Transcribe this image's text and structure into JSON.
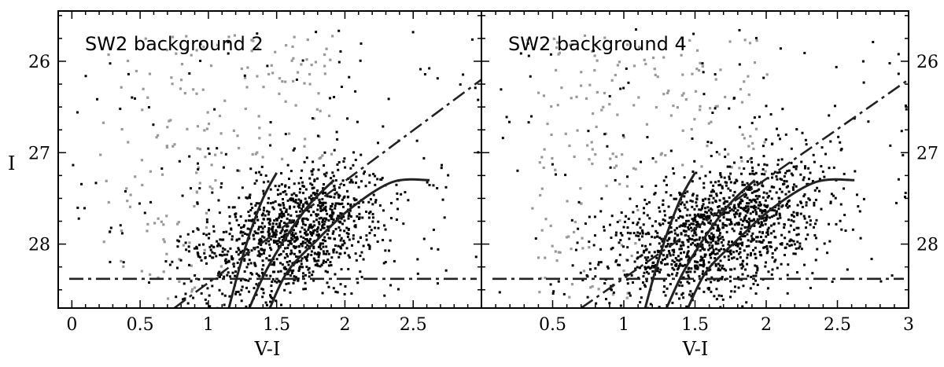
{
  "chart_data": [
    {
      "type": "scatter",
      "title": "SW2 background 2",
      "xlabel": "V-I",
      "ylabel": "I",
      "xlim": [
        -0.1,
        3.0
      ],
      "ylim": [
        28.7,
        25.45
      ],
      "y_inverted": true,
      "xticks": [
        "0",
        "0.5",
        "1",
        "1.5",
        "2",
        "2.5"
      ],
      "xtick_values": [
        0,
        0.5,
        1,
        1.5,
        2,
        2.5
      ],
      "yticks": [
        "26",
        "27",
        "28"
      ],
      "ytick_values": [
        26,
        27,
        28
      ],
      "ytick_labels_side": "left",
      "colors": {
        "bright_points": "#999999",
        "faint_points": "#000000",
        "lines": "#222222"
      },
      "limit_lines": {
        "horizontal_I": 28.38,
        "diagonal": {
          "x1": 0.75,
          "y1": 28.7,
          "x2": 3.0,
          "y2": 26.2
        }
      },
      "isochrones": [
        [
          [
            1.15,
            28.7
          ],
          [
            1.22,
            28.3
          ],
          [
            1.3,
            27.9
          ],
          [
            1.4,
            27.5
          ],
          [
            1.5,
            27.22
          ]
        ],
        [
          [
            1.3,
            28.7
          ],
          [
            1.42,
            28.3
          ],
          [
            1.58,
            27.9
          ],
          [
            1.75,
            27.55
          ],
          [
            1.92,
            27.3
          ]
        ],
        [
          [
            1.45,
            28.7
          ],
          [
            1.58,
            28.3
          ],
          [
            1.8,
            27.95
          ],
          [
            2.05,
            27.6
          ],
          [
            2.35,
            27.32
          ],
          [
            2.62,
            27.3
          ]
        ]
      ],
      "cloud": {
        "center_x": 1.62,
        "center_y": 27.85,
        "spread_x": 0.34,
        "spread_y": 0.33,
        "count": 1100
      }
    },
    {
      "type": "scatter",
      "title": "SW2 background 4",
      "xlabel": "V-I",
      "ylabel": "",
      "xlim": [
        0.0,
        3.0
      ],
      "ylim": [
        28.7,
        25.45
      ],
      "y_inverted": true,
      "xticks": [
        "0.5",
        "1",
        "1.5",
        "2",
        "2.5",
        "3"
      ],
      "xtick_values": [
        0.5,
        1,
        1.5,
        2,
        2.5,
        3
      ],
      "yticks": [
        "26",
        "27",
        "28"
      ],
      "ytick_values": [
        26,
        27,
        28
      ],
      "ytick_labels_side": "right",
      "colors": {
        "bright_points": "#999999",
        "faint_points": "#000000",
        "lines": "#222222"
      },
      "limit_lines": {
        "horizontal_I": 28.38,
        "diagonal": {
          "x1": 0.7,
          "y1": 28.7,
          "x2": 3.0,
          "y2": 26.2
        }
      },
      "isochrones": [
        [
          [
            1.15,
            28.7
          ],
          [
            1.22,
            28.3
          ],
          [
            1.3,
            27.9
          ],
          [
            1.4,
            27.5
          ],
          [
            1.5,
            27.22
          ]
        ],
        [
          [
            1.3,
            28.7
          ],
          [
            1.42,
            28.3
          ],
          [
            1.58,
            27.9
          ],
          [
            1.75,
            27.55
          ],
          [
            1.92,
            27.3
          ]
        ],
        [
          [
            1.45,
            28.7
          ],
          [
            1.58,
            28.3
          ],
          [
            1.8,
            27.95
          ],
          [
            2.05,
            27.6
          ],
          [
            2.35,
            27.32
          ],
          [
            2.62,
            27.3
          ]
        ]
      ],
      "cloud": {
        "center_x": 1.65,
        "center_y": 27.85,
        "spread_x": 0.38,
        "spread_y": 0.35,
        "count": 1300
      }
    }
  ]
}
